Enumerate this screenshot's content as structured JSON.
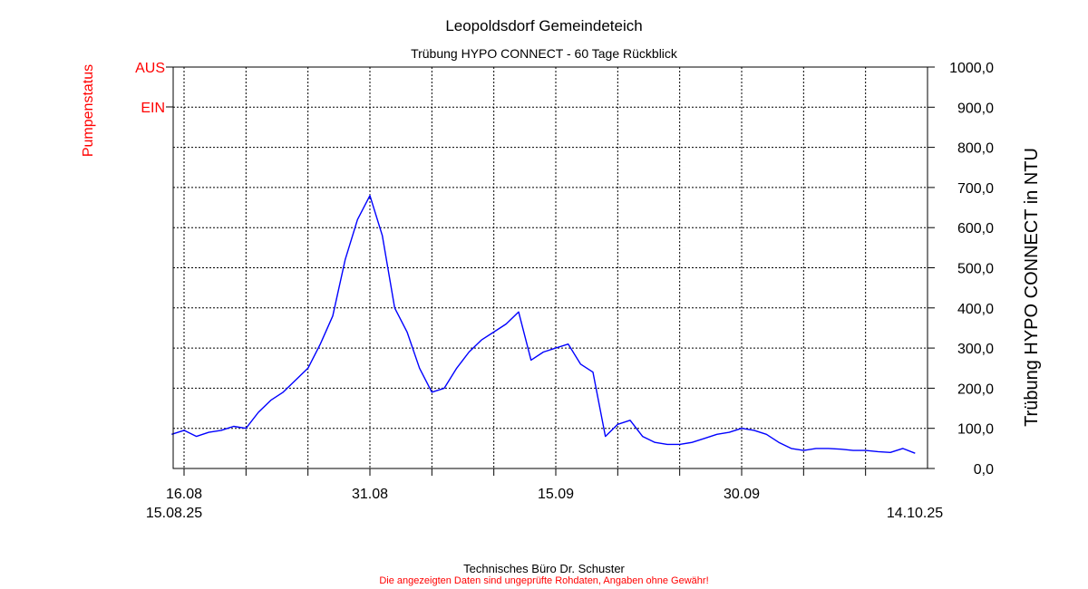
{
  "header": {
    "title": "Leopoldsdorf Gemeindeteich",
    "subtitle": "Trübung  HYPO CONNECT - 60 Tage Rückblick"
  },
  "footer": {
    "company": "Technisches Büro Dr. Schuster",
    "disclaimer": "Die angezeigten Daten sind ungeprüfte Rohdaten, Angaben ohne Gewähr!"
  },
  "colors": {
    "series": "#0000ff",
    "pump_status": "#ff0000",
    "grid": "#000000"
  },
  "chart_data": {
    "type": "line",
    "title": "Leopoldsdorf Gemeindeteich",
    "subtitle": "Trübung  HYPO CONNECT - 60 Tage Rückblick",
    "ylabel_right": "Trübung  HYPO CONNECT in NTU",
    "ylabel_left": "Pumpenstatus",
    "ylim": [
      0,
      1000
    ],
    "y_ticks": [
      "1000,0",
      "900,0",
      "800,0",
      "700,0",
      "600,0",
      "500,0",
      "400,0",
      "300,0",
      "200,0",
      "100,0",
      "0,0"
    ],
    "y_tick_values": [
      1000,
      900,
      800,
      700,
      600,
      500,
      400,
      300,
      200,
      100,
      0
    ],
    "pump_status_ticks": [
      "AUS",
      "EIN"
    ],
    "x_start_label": "15.08.25",
    "x_end_label": "14.10.25",
    "x_ticks": [
      "16.08",
      "31.08",
      "15.09",
      "30.09"
    ],
    "x_tick_days": [
      1,
      16,
      31,
      46
    ],
    "x_range_days": [
      0,
      60
    ],
    "grid": true,
    "series": [
      {
        "x_days": [
          0,
          1,
          2,
          3,
          4,
          5,
          6,
          7,
          8,
          9,
          10,
          11,
          12,
          13,
          14,
          15,
          16,
          17,
          18,
          19,
          20,
          21,
          22,
          23,
          24,
          25,
          26,
          27,
          28,
          29,
          30,
          31,
          32,
          33,
          34,
          35,
          36,
          37,
          38,
          39,
          40,
          41,
          42,
          43,
          44,
          45,
          46,
          47,
          48,
          49,
          50,
          51,
          52,
          53,
          54,
          55,
          56,
          57,
          58,
          59,
          60
        ],
        "values": [
          85,
          95,
          80,
          90,
          95,
          105,
          100,
          140,
          170,
          190,
          220,
          250,
          310,
          380,
          520,
          620,
          680,
          580,
          400,
          340,
          250,
          190,
          200,
          250,
          290,
          320,
          340,
          360,
          390,
          270,
          290,
          300,
          310,
          260,
          240,
          80,
          110,
          120,
          80,
          65,
          60,
          60,
          65,
          75,
          85,
          90,
          100,
          95,
          85,
          65,
          50,
          45,
          50,
          50,
          48,
          45,
          45,
          42,
          40,
          50,
          38
        ]
      }
    ]
  }
}
